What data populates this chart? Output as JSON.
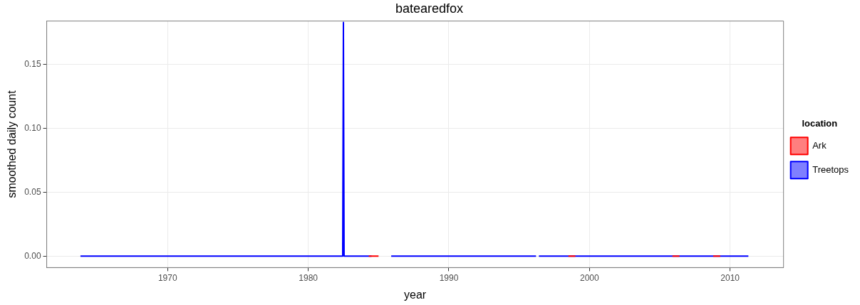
{
  "chart_data": {
    "type": "line",
    "title": "batearedfox",
    "xlabel": "year",
    "ylabel": "smoothed daily count",
    "legend_title": "location",
    "legend": "right",
    "grid": true,
    "xlim": [
      1961.4,
      2013.8
    ],
    "xticks": [
      1970,
      1980,
      1990,
      2000,
      2010
    ],
    "ylim": [
      -0.009,
      0.184
    ],
    "yticks": [
      {
        "value": 0,
        "label": "0.00"
      },
      {
        "value": 0.05,
        "label": "0.05"
      },
      {
        "value": 0.1,
        "label": "0.10"
      },
      {
        "value": 0.15,
        "label": "0.15"
      }
    ],
    "series": [
      {
        "name": "Ark",
        "color": "#ff0000",
        "x": [
          1984.3,
          1985.0,
          1985.1,
          1998.5,
          1999.0,
          1999.1,
          2005.9,
          2006.4,
          2006.5,
          2008.8,
          2009.3
        ],
        "values": [
          0,
          0,
          null,
          0,
          0,
          null,
          0,
          0,
          null,
          0,
          0
        ]
      },
      {
        "name": "Treetops",
        "color": "#0000ff",
        "x": [
          1963.8,
          1982.45,
          1982.5,
          1982.55,
          1984.5,
          1985.4,
          1985.9,
          1996.2,
          1996.3,
          1996.4,
          2011.3
        ],
        "values": [
          0,
          0,
          0.183,
          0,
          0,
          null,
          0,
          0,
          null,
          0,
          0
        ]
      }
    ]
  }
}
